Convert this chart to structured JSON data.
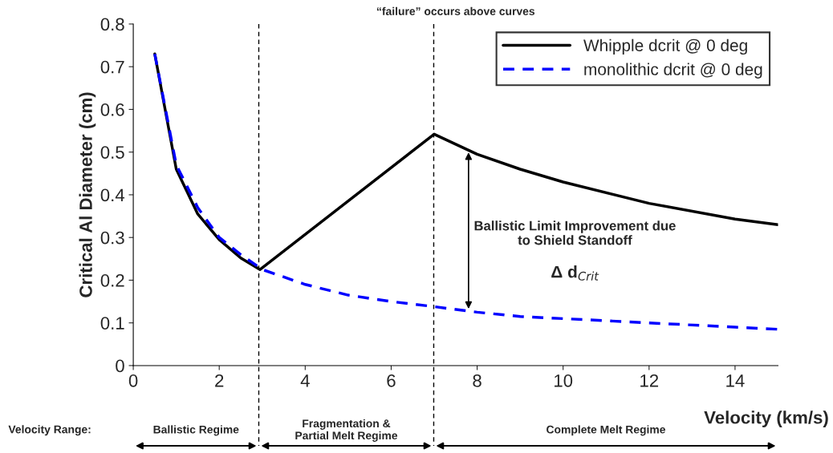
{
  "chart_data": {
    "type": "line",
    "title": "“failure” occurs above curves",
    "xlabel": "Velocity (km/s)",
    "ylabel": "Critical Al Diameter (cm)",
    "xlim": [
      0,
      15
    ],
    "xticks": [
      0,
      2,
      4,
      6,
      8,
      10,
      12,
      14
    ],
    "ylim": [
      0,
      0.8
    ],
    "yticks": [
      0,
      0.1,
      0.2,
      0.3,
      0.4,
      0.5,
      0.6,
      0.7,
      0.8
    ],
    "series": [
      {
        "name": "Whipple dcrit @ 0 deg",
        "color": "#000000",
        "line_style": "solid",
        "x": [
          0.5,
          1,
          1.5,
          2,
          2.5,
          2.95,
          7,
          8,
          9,
          10,
          12,
          14,
          15
        ],
        "values": [
          0.73,
          0.46,
          0.355,
          0.295,
          0.252,
          0.225,
          0.542,
          0.495,
          0.46,
          0.43,
          0.38,
          0.343,
          0.33
        ]
      },
      {
        "name": "monolithic dcrit @ 0 deg",
        "color": "#0000ff",
        "line_style": "dashed",
        "x": [
          0.5,
          1,
          1.5,
          2,
          2.5,
          3,
          4,
          5,
          6,
          7,
          8,
          9,
          10,
          12,
          14,
          15
        ],
        "values": [
          0.73,
          0.47,
          0.37,
          0.3,
          0.26,
          0.225,
          0.19,
          0.165,
          0.15,
          0.138,
          0.125,
          0.115,
          0.11,
          0.1,
          0.09,
          0.085
        ]
      }
    ],
    "ref_lines": [
      {
        "axis": "x",
        "value": 2.92,
        "line_style": "dashed",
        "color": "#000000"
      },
      {
        "axis": "x",
        "value": 6.99,
        "line_style": "dashed",
        "color": "#000000"
      }
    ],
    "annotations": [
      "Ballistic Limit Improvement due\nto Shield Standoff",
      "Δ d$_{Crit}$",
      "Velocity Range:",
      "Ballistic Regime",
      "Fragmentation &\nPartial Melt Regime",
      "Complete Melt Regime"
    ],
    "grid": false,
    "legend": "top right"
  }
}
